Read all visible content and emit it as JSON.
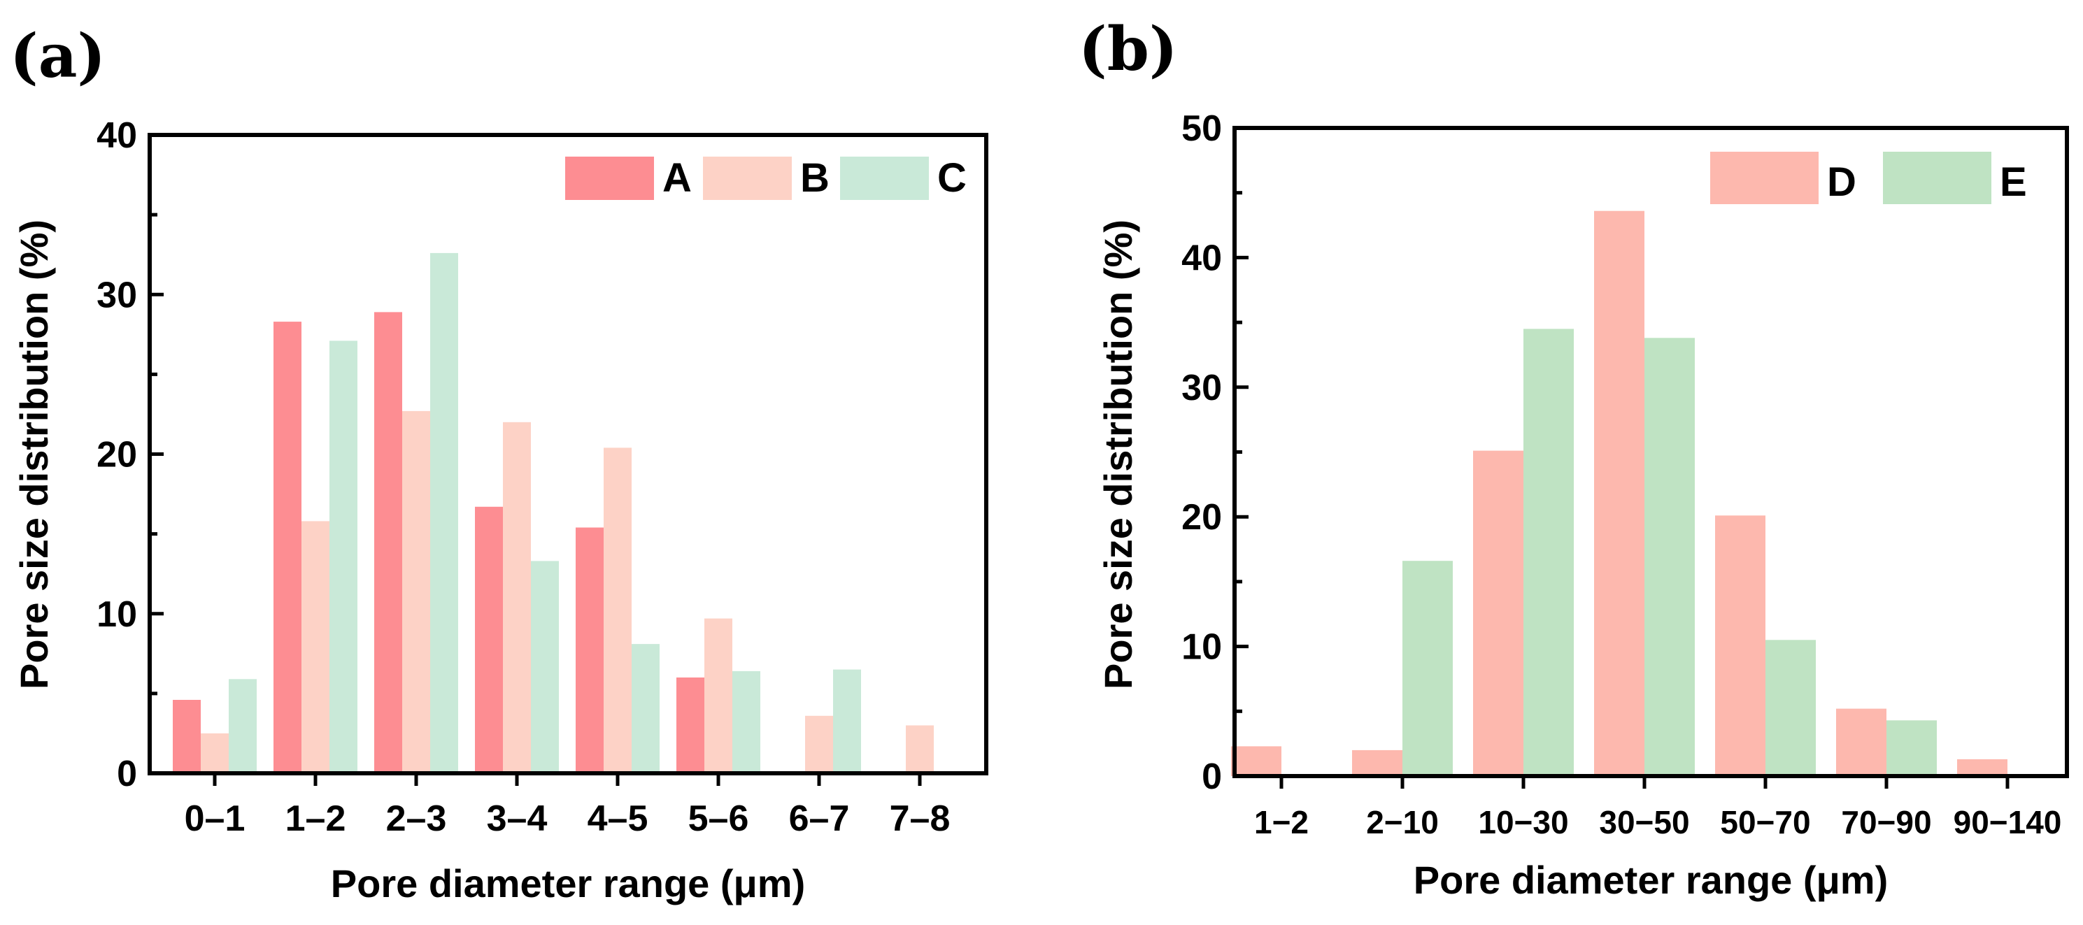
{
  "chart_data": [
    {
      "type": "bar",
      "panel_label": "(a)",
      "xlabel": "Pore diameter range (μm)",
      "ylabel": "Pore size distribution (%)",
      "ylim": [
        0,
        40
      ],
      "yticks": [
        "0",
        "10",
        "20",
        "30",
        "40"
      ],
      "legend_position": "top-right",
      "categories": [
        "0–1",
        "1–2",
        "2–3",
        "3–4",
        "4–5",
        "5–6",
        "6–7",
        "7–8"
      ],
      "series": [
        {
          "name": "A",
          "color": "#fd8d92",
          "values": [
            4.6,
            28.3,
            28.9,
            16.7,
            15.4,
            6.0,
            null,
            null
          ]
        },
        {
          "name": "B",
          "color": "#fdd2c6",
          "values": [
            2.5,
            15.8,
            22.7,
            22.0,
            20.4,
            9.7,
            3.6,
            3.0
          ]
        },
        {
          "name": "C",
          "color": "#c9e9d8",
          "values": [
            5.9,
            27.1,
            32.6,
            13.3,
            8.1,
            6.4,
            6.5,
            null
          ]
        }
      ]
    },
    {
      "type": "bar",
      "panel_label": "(b)",
      "xlabel": "Pore diameter range (μm)",
      "ylabel": "Pore size distribution (%)",
      "ylim": [
        0,
        50
      ],
      "yticks": [
        "0",
        "10",
        "20",
        "30",
        "40",
        "50"
      ],
      "legend_position": "top-right",
      "categories": [
        "1−2",
        "2−10",
        "10−30",
        "30−50",
        "50−70",
        "70−90",
        "90−140"
      ],
      "series": [
        {
          "name": "D",
          "color": "#fdb8ae",
          "values": [
            2.3,
            2.0,
            25.1,
            43.6,
            20.1,
            5.2,
            1.3
          ]
        },
        {
          "name": "E",
          "color": "#bfe3c3",
          "values": [
            null,
            16.6,
            34.5,
            33.8,
            10.5,
            4.3,
            null
          ]
        }
      ]
    }
  ]
}
